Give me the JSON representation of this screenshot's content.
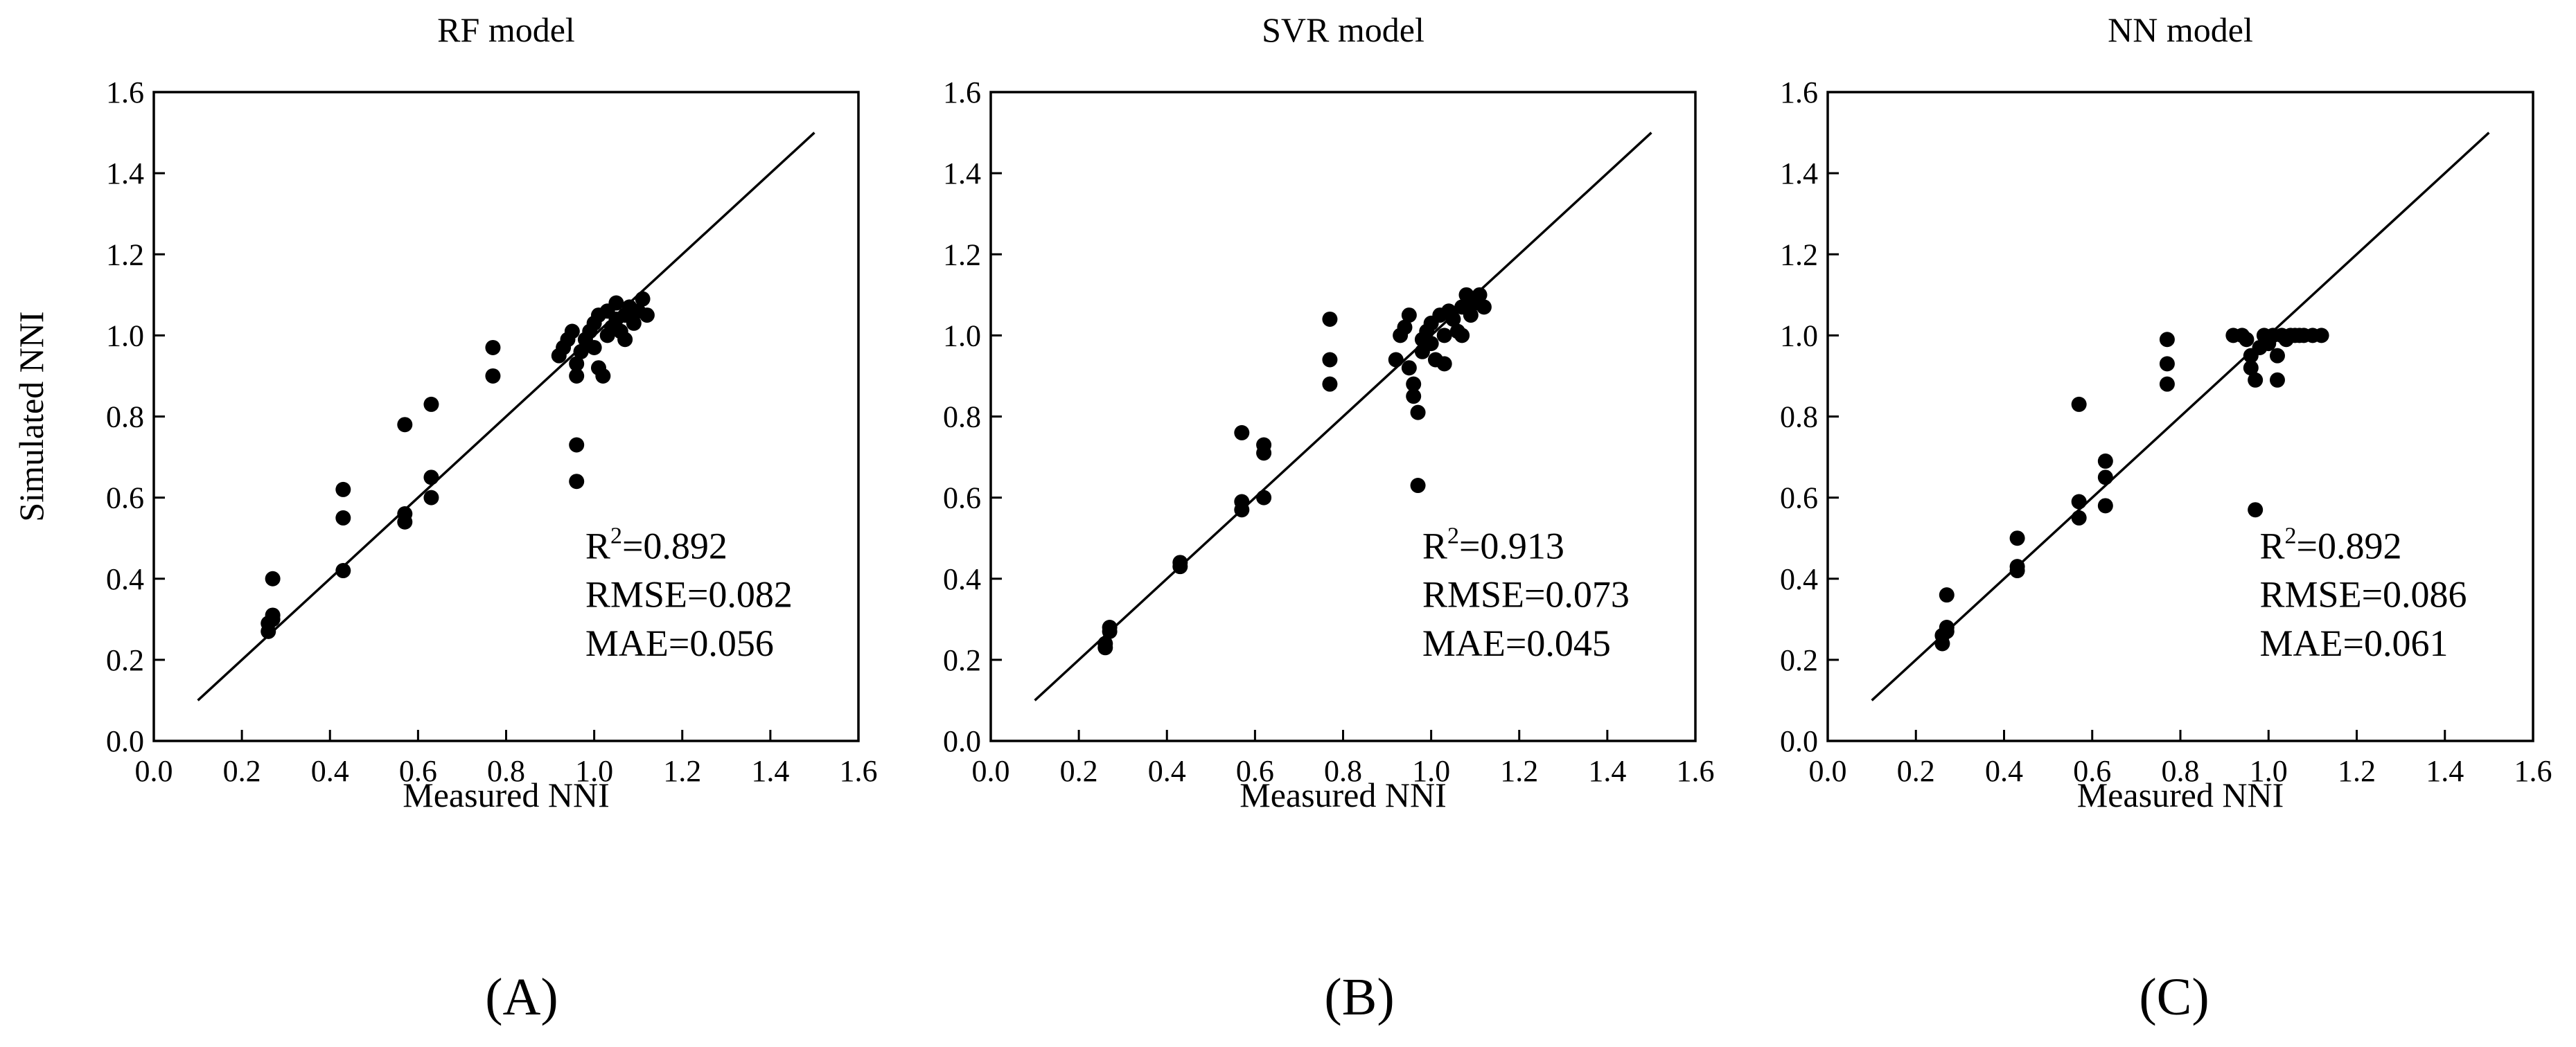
{
  "chart_data": [
    {
      "type": "scatter",
      "panel_label": "(A)",
      "title": "RF model",
      "xlabel": "Measured NNI",
      "ylabel": "Simulated NNI",
      "xlim": [
        0.0,
        1.6
      ],
      "ylim": [
        0.0,
        1.6
      ],
      "xticks": [
        "0.0",
        "0.2",
        "0.4",
        "0.6",
        "0.8",
        "1.0",
        "1.2",
        "1.4",
        "1.6"
      ],
      "yticks": [
        "0.0",
        "0.2",
        "0.4",
        "0.6",
        "0.8",
        "1.0",
        "1.2",
        "1.4",
        "1.6"
      ],
      "reference_line": {
        "x": [
          0.1,
          1.5
        ],
        "y": [
          0.1,
          1.5
        ]
      },
      "stats": {
        "r2_prefix": "R",
        "r2_sup": "2",
        "r2_value": "=0.892",
        "rmse": "RMSE=0.082",
        "mae": "MAE=0.056"
      },
      "points": [
        [
          0.26,
          0.27
        ],
        [
          0.26,
          0.29
        ],
        [
          0.27,
          0.3
        ],
        [
          0.27,
          0.31
        ],
        [
          0.27,
          0.4
        ],
        [
          0.43,
          0.42
        ],
        [
          0.43,
          0.55
        ],
        [
          0.43,
          0.62
        ],
        [
          0.57,
          0.54
        ],
        [
          0.57,
          0.56
        ],
        [
          0.57,
          0.78
        ],
        [
          0.63,
          0.6
        ],
        [
          0.63,
          0.65
        ],
        [
          0.63,
          0.83
        ],
        [
          0.77,
          0.9
        ],
        [
          0.77,
          0.97
        ],
        [
          0.92,
          0.95
        ],
        [
          0.93,
          0.97
        ],
        [
          0.94,
          0.99
        ],
        [
          0.95,
          1.01
        ],
        [
          0.96,
          0.9
        ],
        [
          0.96,
          0.93
        ],
        [
          0.96,
          0.64
        ],
        [
          0.96,
          0.73
        ],
        [
          0.97,
          0.96
        ],
        [
          0.98,
          0.99
        ],
        [
          0.99,
          1.01
        ],
        [
          1.0,
          0.97
        ],
        [
          1.0,
          1.03
        ],
        [
          1.01,
          1.05
        ],
        [
          1.01,
          0.92
        ],
        [
          1.02,
          0.9
        ],
        [
          1.03,
          1.0
        ],
        [
          1.03,
          1.06
        ],
        [
          1.04,
          1.02
        ],
        [
          1.05,
          1.04
        ],
        [
          1.05,
          1.08
        ],
        [
          1.06,
          1.01
        ],
        [
          1.07,
          0.99
        ],
        [
          1.07,
          1.05
        ],
        [
          1.08,
          1.07
        ],
        [
          1.09,
          1.03
        ],
        [
          1.1,
          1.06
        ],
        [
          1.11,
          1.09
        ],
        [
          1.12,
          1.05
        ]
      ]
    },
    {
      "type": "scatter",
      "panel_label": "(B)",
      "title": "SVR model",
      "xlabel": "Measured NNI",
      "ylabel": "",
      "xlim": [
        0.0,
        1.6
      ],
      "ylim": [
        0.0,
        1.6
      ],
      "xticks": [
        "0.0",
        "0.2",
        "0.4",
        "0.6",
        "0.8",
        "1.0",
        "1.2",
        "1.4",
        "1.6"
      ],
      "yticks": [
        "0.0",
        "0.2",
        "0.4",
        "0.6",
        "0.8",
        "1.0",
        "1.2",
        "1.4",
        "1.6"
      ],
      "reference_line": {
        "x": [
          0.1,
          1.5
        ],
        "y": [
          0.1,
          1.5
        ]
      },
      "stats": {
        "r2_prefix": "R",
        "r2_sup": "2",
        "r2_value": "=0.913",
        "rmse": "RMSE=0.073",
        "mae": "MAE=0.045"
      },
      "points": [
        [
          0.26,
          0.23
        ],
        [
          0.26,
          0.24
        ],
        [
          0.27,
          0.27
        ],
        [
          0.27,
          0.28
        ],
        [
          0.43,
          0.43
        ],
        [
          0.43,
          0.44
        ],
        [
          0.57,
          0.57
        ],
        [
          0.57,
          0.59
        ],
        [
          0.57,
          0.76
        ],
        [
          0.62,
          0.6
        ],
        [
          0.62,
          0.71
        ],
        [
          0.62,
          0.73
        ],
        [
          0.77,
          0.88
        ],
        [
          0.77,
          0.94
        ],
        [
          0.77,
          1.04
        ],
        [
          0.92,
          0.94
        ],
        [
          0.93,
          1.0
        ],
        [
          0.94,
          1.02
        ],
        [
          0.95,
          1.05
        ],
        [
          0.95,
          0.92
        ],
        [
          0.96,
          0.85
        ],
        [
          0.96,
          0.88
        ],
        [
          0.97,
          0.81
        ],
        [
          0.97,
          0.63
        ],
        [
          0.98,
          0.96
        ],
        [
          0.98,
          0.99
        ],
        [
          0.99,
          1.01
        ],
        [
          1.0,
          0.98
        ],
        [
          1.0,
          1.03
        ],
        [
          1.01,
          0.94
        ],
        [
          1.02,
          1.05
        ],
        [
          1.03,
          0.93
        ],
        [
          1.03,
          1.0
        ],
        [
          1.04,
          1.06
        ],
        [
          1.05,
          1.04
        ],
        [
          1.06,
          1.01
        ],
        [
          1.07,
          1.07
        ],
        [
          1.07,
          1.0
        ],
        [
          1.08,
          1.1
        ],
        [
          1.09,
          1.05
        ],
        [
          1.1,
          1.08
        ],
        [
          1.11,
          1.1
        ],
        [
          1.12,
          1.07
        ]
      ]
    },
    {
      "type": "scatter",
      "panel_label": "(C)",
      "title": "NN model",
      "xlabel": "Measured NNI",
      "ylabel": "",
      "xlim": [
        0.0,
        1.6
      ],
      "ylim": [
        0.0,
        1.6
      ],
      "xticks": [
        "0.0",
        "0.2",
        "0.4",
        "0.6",
        "0.8",
        "1.0",
        "1.2",
        "1.4",
        "1.6"
      ],
      "yticks": [
        "0.0",
        "0.2",
        "0.4",
        "0.6",
        "0.8",
        "1.0",
        "1.2",
        "1.4",
        "1.6"
      ],
      "reference_line": {
        "x": [
          0.1,
          1.5
        ],
        "y": [
          0.1,
          1.5
        ]
      },
      "stats": {
        "r2_prefix": "R",
        "r2_sup": "2",
        "r2_value": "=0.892",
        "rmse": "RMSE=0.086",
        "mae": "MAE=0.061"
      },
      "points": [
        [
          0.26,
          0.24
        ],
        [
          0.26,
          0.26
        ],
        [
          0.27,
          0.27
        ],
        [
          0.27,
          0.28
        ],
        [
          0.27,
          0.36
        ],
        [
          0.43,
          0.42
        ],
        [
          0.43,
          0.43
        ],
        [
          0.43,
          0.5
        ],
        [
          0.57,
          0.55
        ],
        [
          0.57,
          0.59
        ],
        [
          0.57,
          0.83
        ],
        [
          0.63,
          0.58
        ],
        [
          0.63,
          0.65
        ],
        [
          0.63,
          0.69
        ],
        [
          0.77,
          0.88
        ],
        [
          0.77,
          0.93
        ],
        [
          0.77,
          0.99
        ],
        [
          0.92,
          1.0
        ],
        [
          0.94,
          1.0
        ],
        [
          0.95,
          0.99
        ],
        [
          0.96,
          0.95
        ],
        [
          0.96,
          0.92
        ],
        [
          0.97,
          0.89
        ],
        [
          0.97,
          0.57
        ],
        [
          0.98,
          0.97
        ],
        [
          0.99,
          1.0
        ],
        [
          1.0,
          0.98
        ],
        [
          1.01,
          1.0
        ],
        [
          1.02,
          0.95
        ],
        [
          1.02,
          0.89
        ],
        [
          1.03,
          1.0
        ],
        [
          1.04,
          0.99
        ],
        [
          1.05,
          1.0
        ],
        [
          1.06,
          1.0
        ],
        [
          1.07,
          1.0
        ],
        [
          1.08,
          1.0
        ],
        [
          1.1,
          1.0
        ],
        [
          1.12,
          1.0
        ]
      ]
    }
  ]
}
